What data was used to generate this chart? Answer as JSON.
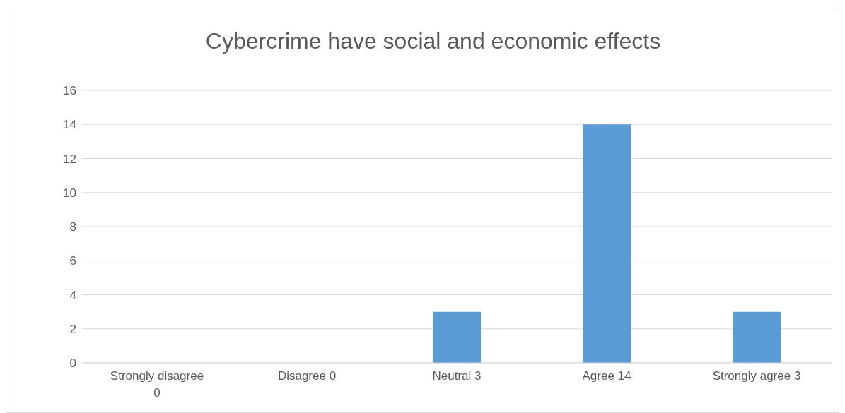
{
  "chart_data": {
    "type": "bar",
    "title": "Cybercrime have social and economic effects",
    "categories": [
      "Strongly disagree 0",
      "Disagree 0",
      "Neutral 3",
      "Agree 14",
      "Strongly agree 3"
    ],
    "values": [
      0,
      0,
      3,
      14,
      3
    ],
    "color": "#5b9bd5",
    "ylim": [
      0,
      16
    ],
    "yticks": [
      0,
      2,
      4,
      6,
      8,
      10,
      12,
      14,
      16
    ],
    "grid": "y"
  }
}
